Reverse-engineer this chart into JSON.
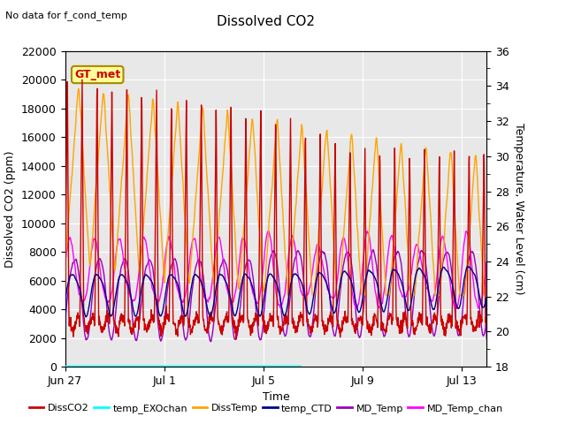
{
  "title": "Dissolved CO2",
  "subtitle": "No data for f_cond_temp",
  "xlabel": "Time",
  "ylabel_left": "Dissolved CO2 (ppm)",
  "ylabel_right": "Temperature, Water Level (cm)",
  "ylim_left": [
    0,
    22000
  ],
  "ylim_right": [
    18,
    36
  ],
  "yticks_left": [
    0,
    2000,
    4000,
    6000,
    8000,
    10000,
    12000,
    14000,
    16000,
    18000,
    20000,
    22000
  ],
  "yticks_right": [
    18,
    20,
    22,
    24,
    26,
    28,
    30,
    32,
    34,
    36
  ],
  "plot_bg_color": "#e8e8e8",
  "gt_met_box_color": "#ffff99",
  "legend_entries": [
    "DissCO2",
    "temp_EXOchan",
    "DissTemp",
    "temp_CTD",
    "MD_Temp",
    "MD_Temp_chan"
  ],
  "legend_colors": [
    "#cc0000",
    "#00ffff",
    "#ffa500",
    "#00008b",
    "#9900bb",
    "#ff00ff"
  ],
  "xtick_labels": [
    "Jun 27",
    "Jul 1",
    "Jul 5",
    "Jul 9",
    "Jul 13"
  ],
  "xtick_positions": [
    0,
    4,
    8,
    12,
    16
  ],
  "n_days": 17
}
